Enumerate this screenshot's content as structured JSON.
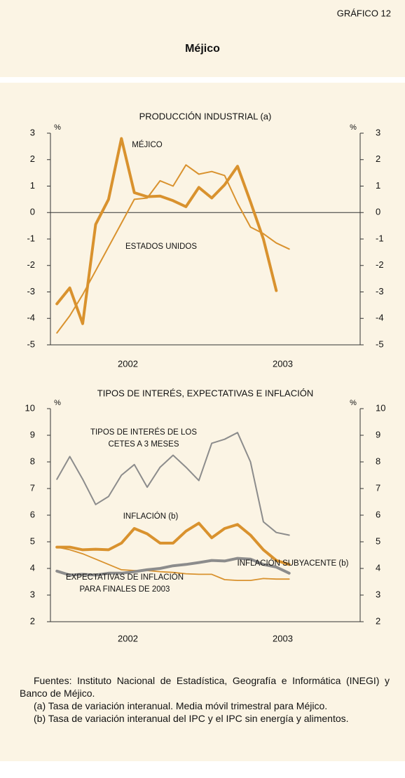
{
  "header": {
    "figure": "GRÁFICO 12",
    "title": "Méjico"
  },
  "chart_data": [
    {
      "type": "line",
      "title": "PRODUCCIÓN INDUSTRIAL (a)",
      "y_unit": "%",
      "xlim": [
        0,
        24
      ],
      "xticks": [
        {
          "value": 6,
          "label": "2002"
        },
        {
          "value": 18,
          "label": "2003"
        }
      ],
      "x": [
        0.5,
        1.5,
        2.5,
        3.5,
        4.5,
        5.5,
        6.5,
        7.5,
        8.5,
        9.5,
        10.5,
        11.5,
        12.5,
        13.5,
        14.5,
        15.5,
        16.5,
        17.5,
        18.5
      ],
      "ylim": [
        -5,
        3
      ],
      "yticks": [
        -5,
        -4,
        -3,
        -2,
        -1,
        0,
        1,
        2,
        3
      ],
      "reference_line": 0,
      "series": [
        {
          "name": "MÉJICO",
          "color": "#d9922e",
          "values": [
            -3.45,
            -2.85,
            -4.2,
            -0.45,
            0.5,
            2.8,
            0.75,
            0.6,
            0.62,
            0.45,
            0.22,
            0.95,
            0.55,
            1.05,
            1.75,
            0.4,
            -1.0,
            -2.95,
            null
          ]
        },
        {
          "name": "ESTADOS UNIDOS",
          "color": "#d9922e",
          "values": [
            -4.55,
            -3.9,
            -3.1,
            -2.2,
            -1.3,
            -0.4,
            0.5,
            0.55,
            1.2,
            1.0,
            1.8,
            1.45,
            1.55,
            1.4,
            0.35,
            -0.55,
            -0.8,
            -1.15,
            -1.38
          ]
        }
      ]
    },
    {
      "type": "line",
      "title": "TIPOS DE INTERÉS, EXPECTATIVAS E INFLACIÓN",
      "y_unit": "%",
      "xlim": [
        0,
        24
      ],
      "xticks": [
        {
          "value": 6,
          "label": "2002"
        },
        {
          "value": 18,
          "label": "2003"
        }
      ],
      "x": [
        0.5,
        1.5,
        2.5,
        3.5,
        4.5,
        5.5,
        6.5,
        7.5,
        8.5,
        9.5,
        10.5,
        11.5,
        12.5,
        13.5,
        14.5,
        15.5,
        16.5,
        17.5,
        18.5
      ],
      "ylim": [
        2,
        10
      ],
      "yticks": [
        2,
        3,
        4,
        5,
        6,
        7,
        8,
        9,
        10
      ],
      "series": [
        {
          "name": "TIPOS DE INTERÉS DE LOS CETES A 3 MESES",
          "color": "#8c8c8c",
          "values": [
            7.35,
            8.2,
            7.35,
            6.4,
            6.7,
            7.5,
            7.9,
            7.05,
            7.8,
            8.25,
            7.8,
            7.3,
            8.7,
            8.85,
            9.1,
            8.0,
            5.75,
            5.35,
            5.25
          ]
        },
        {
          "name": "INFLACIÓN (b)",
          "color": "#d9922e",
          "values": [
            4.8,
            4.8,
            4.7,
            4.72,
            4.7,
            4.95,
            5.5,
            5.3,
            4.95,
            4.95,
            5.4,
            5.7,
            5.15,
            5.5,
            5.65,
            5.25,
            4.7,
            4.3,
            4.15
          ]
        },
        {
          "name": "INFLACIÓN SUBYACENTE (b)",
          "color": "#d9922e",
          "values": [
            4.8,
            4.7,
            4.55,
            4.35,
            4.15,
            3.95,
            3.92,
            3.92,
            3.88,
            3.85,
            3.8,
            3.78,
            3.78,
            3.58,
            3.55,
            3.55,
            3.62,
            3.6,
            3.6
          ]
        },
        {
          "name": "EXPECTATIVAS DE INFLACIÓN PARA FINALES DE 2003",
          "color": "#8c8c8c",
          "values": [
            3.9,
            3.75,
            3.78,
            3.75,
            3.82,
            3.82,
            3.88,
            3.95,
            4.0,
            4.1,
            4.15,
            4.22,
            4.3,
            4.28,
            4.38,
            4.35,
            4.15,
            4.05,
            3.82
          ]
        }
      ]
    }
  ],
  "notes": [
    "Fuentes: Instituto Nacional de Estadística, Geografía e Informática (INEGI) y Banco de Méjico.",
    "(a)  Tasa de variación interanual. Media móvil trimestral para Méjico.",
    "(b)  Tasa de variación interanual del IPC y el IPC sin energía y alimentos."
  ]
}
